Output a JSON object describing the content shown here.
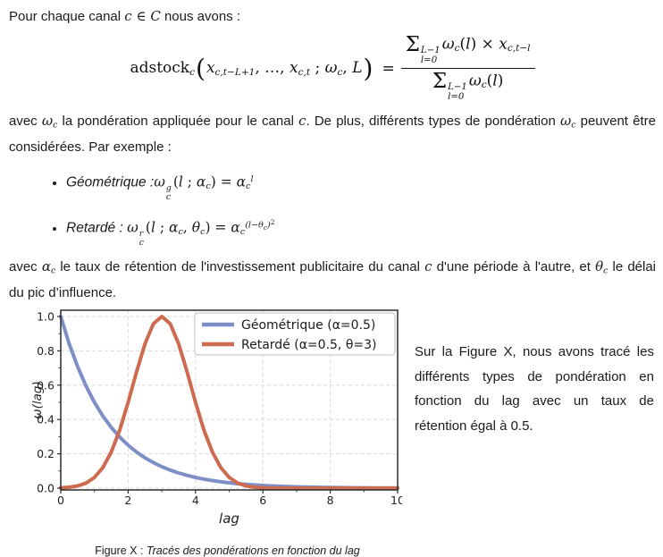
{
  "page": {
    "intro_tokens": [
      {
        "t": "Pour chaque canal ",
        "s": "txt"
      },
      {
        "t": "c",
        "s": "mi"
      },
      {
        "t": " ∈ ",
        "s": "mu"
      },
      {
        "t": "C",
        "s": "mi"
      },
      {
        "t": " nous avons :",
        "s": "txt"
      }
    ],
    "formula": {
      "open": "(",
      "close": ")",
      "eq": "=",
      "lhs_tokens": [
        {
          "t": "adstock",
          "s": "mu"
        },
        {
          "t": "c",
          "s": "msub"
        }
      ],
      "args_tokens": [
        {
          "t": "x",
          "s": "mi"
        },
        {
          "t": "c,t−L+1",
          "s": "msub"
        },
        {
          "t": ", …, ",
          "s": "mu"
        },
        {
          "t": "x",
          "s": "mi"
        },
        {
          "t": "c,t",
          "s": "msub"
        },
        {
          "t": " ; ",
          "s": "mu"
        },
        {
          "t": "ω",
          "s": "mi"
        },
        {
          "t": "c",
          "s": "msub"
        },
        {
          "t": ", ",
          "s": "mu"
        },
        {
          "t": "L",
          "s": "mi"
        }
      ],
      "num_tokens": [
        {
          "t": "Σ",
          "s": "sum"
        },
        {
          "t": "L−1|l=0",
          "s": "stk"
        },
        {
          "t": "ω",
          "s": "mi"
        },
        {
          "t": "c",
          "s": "msub"
        },
        {
          "t": "(",
          "s": "mu"
        },
        {
          "t": "l",
          "s": "mi"
        },
        {
          "t": ")",
          "s": "mu"
        },
        {
          "t": " × ",
          "s": "mu"
        },
        {
          "t": "x",
          "s": "mi"
        },
        {
          "t": "c,t−l",
          "s": "msub"
        }
      ],
      "den_tokens": [
        {
          "t": "Σ",
          "s": "sum"
        },
        {
          "t": "L−1|l=0",
          "s": "stk"
        },
        {
          "t": "ω",
          "s": "mi"
        },
        {
          "t": "c",
          "s": "msub"
        },
        {
          "t": "(",
          "s": "mu"
        },
        {
          "t": "l",
          "s": "mi"
        },
        {
          "t": ")",
          "s": "mu"
        }
      ]
    },
    "para1_tokens": [
      {
        "t": "avec ",
        "s": "txt"
      },
      {
        "t": "ω",
        "s": "mi"
      },
      {
        "t": "c",
        "s": "msub"
      },
      {
        "t": " la pondération appliquée pour le canal ",
        "s": "txt"
      },
      {
        "t": "c",
        "s": "mi"
      },
      {
        "t": ". De plus, différents types de pondération ",
        "s": "txt"
      },
      {
        "t": "ω",
        "s": "mi"
      },
      {
        "t": "c",
        "s": "msub"
      },
      {
        "t": " peuvent être considérées. Par exemple :",
        "s": "txt"
      }
    ],
    "bullet1_tokens": [
      {
        "t": "Géométrique :",
        "s": "lbl"
      },
      {
        "t": "ω",
        "s": "mi"
      },
      {
        "t": "g|c",
        "s": "stk"
      },
      {
        "t": "(",
        "s": "mu"
      },
      {
        "t": "l",
        "s": "mi"
      },
      {
        "t": " ; ",
        "s": "mu"
      },
      {
        "t": "α",
        "s": "mi"
      },
      {
        "t": "c",
        "s": "msub"
      },
      {
        "t": ") = ",
        "s": "mu"
      },
      {
        "t": "α",
        "s": "mi"
      },
      {
        "t": "c",
        "s": "msub"
      },
      {
        "t": "l",
        "s": "msup"
      }
    ],
    "bullet2_tokens": [
      {
        "t": "Retardé : ",
        "s": "lbl"
      },
      {
        "t": "ω",
        "s": "mi"
      },
      {
        "t": "r|c",
        "s": "stk"
      },
      {
        "t": "(",
        "s": "mu"
      },
      {
        "t": "l",
        "s": "mi"
      },
      {
        "t": " ; ",
        "s": "mu"
      },
      {
        "t": "α",
        "s": "mi"
      },
      {
        "t": "c",
        "s": "msub"
      },
      {
        "t": ", ",
        "s": "mu"
      },
      {
        "t": "θ",
        "s": "mi"
      },
      {
        "t": "c",
        "s": "msub"
      },
      {
        "t": ") = ",
        "s": "mu"
      },
      {
        "t": "α",
        "s": "mi"
      },
      {
        "t": "c",
        "s": "msub"
      },
      {
        "t": "(l−θ",
        "s": "msup"
      },
      {
        "t": "c",
        "s": "msupsub"
      },
      {
        "t": ")",
        "s": "msup"
      },
      {
        "t": "2",
        "s": "msupsup"
      }
    ],
    "para2_tokens": [
      {
        "t": "avec ",
        "s": "txt"
      },
      {
        "t": "α",
        "s": "mi"
      },
      {
        "t": "c",
        "s": "msub"
      },
      {
        "t": " le taux de rétention de l'investissement publicitaire du canal ",
        "s": "txt"
      },
      {
        "t": "c",
        "s": "mi"
      },
      {
        "t": " d'une période à l'autre, et ",
        "s": "txt"
      },
      {
        "t": "θ",
        "s": "mi"
      },
      {
        "t": "c",
        "s": "msub"
      },
      {
        "t": " le délai du pic d’influence.",
        "s": "txt"
      }
    ],
    "aside_text": "Sur la Figure X, nous avons tracé les différents types de pondération en fonction du lag avec un taux de rétention égal à 0.5.",
    "caption": {
      "prefix": "Figure X : ",
      "italic": "Tracés des pondérations en fonction du lag"
    }
  },
  "chart_data": {
    "type": "line",
    "title": "",
    "xlabel": "lag",
    "ylabel": "ω(lag)",
    "xlim": [
      0,
      10
    ],
    "ylim": [
      0,
      1.0
    ],
    "x_ticks": [
      0,
      2,
      4,
      6,
      8,
      10
    ],
    "x_tick_labels": [
      "0",
      "2",
      "4",
      "6",
      "8",
      "10"
    ],
    "y_ticks": [
      0,
      0.2,
      0.4,
      0.6,
      0.8,
      1.0
    ],
    "y_tick_labels": [
      "0.0",
      "0.2",
      "0.4",
      "0.6",
      "0.8",
      "1.0"
    ],
    "x_minor_step": 1,
    "y_minor_step": 0.1,
    "grid": "dashed",
    "legend_position": "upper-right",
    "colors": {
      "grid": "#dadada",
      "spine": "#2b2b2b",
      "tick_label": "#1f1f1f",
      "legend_border": "#cccccc",
      "legend_bg": "#ffffff"
    },
    "x": [
      0,
      0.25,
      0.5,
      0.75,
      1,
      1.25,
      1.5,
      1.75,
      2,
      2.25,
      2.5,
      2.75,
      3,
      3.25,
      3.5,
      3.75,
      4,
      4.25,
      4.5,
      4.75,
      5,
      5.25,
      5.5,
      5.75,
      6,
      6.25,
      6.5,
      6.75,
      7,
      7.25,
      7.5,
      7.75,
      8,
      8.25,
      8.5,
      8.75,
      9,
      9.25,
      9.5,
      9.75,
      10
    ],
    "series": [
      {
        "name": "Géométrique (α=0.5)",
        "color": "#7e8fc7",
        "y": [
          1,
          0.8409,
          0.7071,
          0.5946,
          0.5,
          0.4204,
          0.3536,
          0.2973,
          0.25,
          0.2102,
          0.1768,
          0.1487,
          0.125,
          0.1051,
          0.0884,
          0.0743,
          0.0625,
          0.0526,
          0.0442,
          0.0372,
          0.0313,
          0.0263,
          0.0221,
          0.0186,
          0.0156,
          0.0131,
          0.0111,
          0.0093,
          0.0078,
          0.0066,
          0.0055,
          0.0046,
          0.0039,
          0.0033,
          0.0028,
          0.0023,
          0.002,
          0.0016,
          0.0014,
          0.0012,
          0.001
        ]
      },
      {
        "name": "Retardé (α=0.5, θ=3)",
        "color": "#cd6a50",
        "y": [
          0.002,
          0.0053,
          0.0131,
          0.0299,
          0.0625,
          0.1197,
          0.2102,
          0.3385,
          0.5,
          0.6771,
          0.8409,
          0.9576,
          1,
          0.9576,
          0.8409,
          0.6771,
          0.5,
          0.3385,
          0.2102,
          0.1197,
          0.0625,
          0.0299,
          0.0131,
          0.0053,
          0.002,
          0.0007,
          0.0002,
          0.0001,
          0,
          0,
          0,
          0,
          0,
          0,
          0,
          0,
          0,
          0,
          0,
          0,
          0
        ]
      }
    ]
  }
}
